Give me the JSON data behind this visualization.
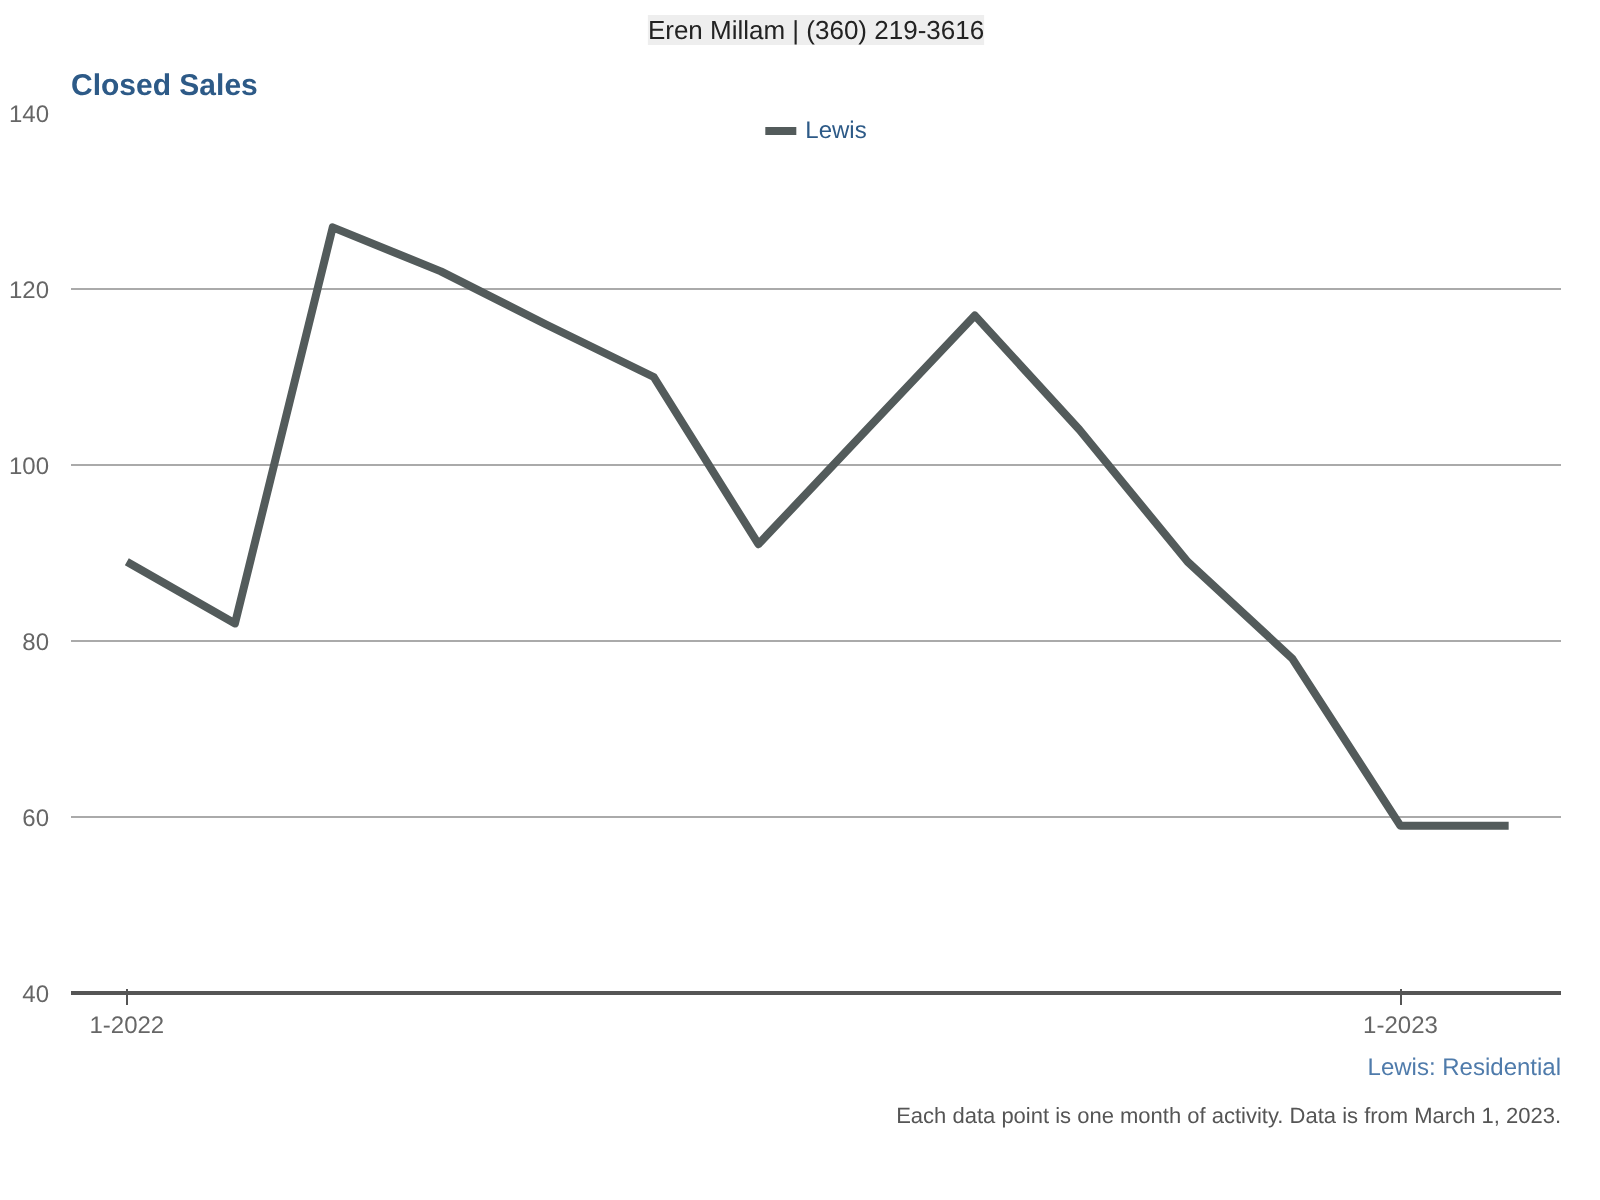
{
  "chart_data": {
    "type": "line",
    "title": "Closed Sales",
    "subtitle": "Eren Millam | (360) 219-3616",
    "x": [
      "2022-01",
      "2022-02",
      "2022-03",
      "2022-04",
      "2022-05",
      "2022-06",
      "2022-07",
      "2022-08",
      "2022-09",
      "2022-10",
      "2022-11",
      "2022-12",
      "2023-01",
      "2023-02"
    ],
    "series": [
      {
        "name": "Lewis",
        "color": "#535b5b",
        "values": [
          89,
          82,
          127,
          122,
          116,
          110,
          91,
          104,
          117,
          104,
          89,
          78,
          59,
          59
        ]
      }
    ],
    "xlim": [
      "2021-12-16",
      "2023-02-16"
    ],
    "xticks": [
      {
        "value": "2022-01",
        "label": "1-2022"
      },
      {
        "value": "2023-01",
        "label": "1-2023"
      }
    ],
    "ylim": [
      40,
      140
    ],
    "yticks": [
      40,
      60,
      80,
      100,
      120,
      140
    ],
    "grid": "y",
    "legend": "top",
    "marker": "none",
    "line_style": "solid",
    "annotations": [
      "Lewis: Residential",
      "Each data point is one month of activity. Data is from March 1, 2023."
    ]
  }
}
